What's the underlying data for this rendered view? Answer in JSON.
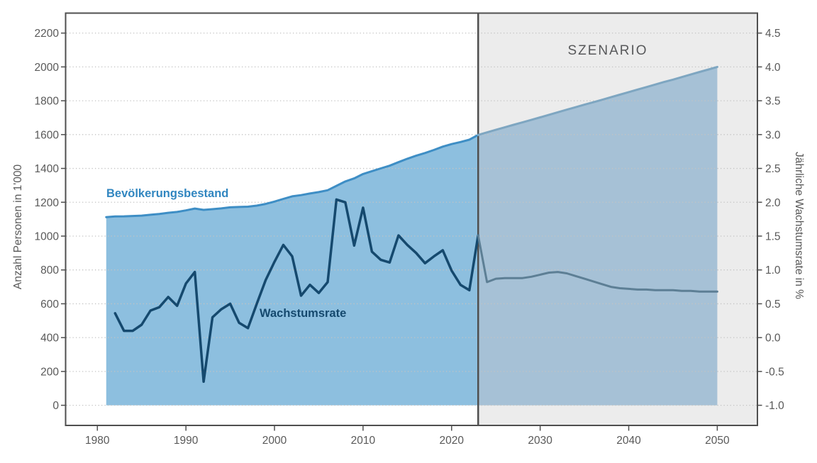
{
  "chart_data": {
    "type": "area",
    "title": "",
    "scenario_label": "SZENARIO",
    "scenario_start_year": 2023,
    "grid": "dotted-horizontal",
    "legend_position": "inline-labels",
    "x_axis": {
      "ticks": [
        1980,
        1990,
        2000,
        2010,
        2020,
        2030,
        2040,
        2050
      ]
    },
    "left_axis": {
      "label": "Anzahl Personen in 1'000",
      "range": [
        0,
        2200
      ],
      "ticks": [
        2200,
        2000,
        1800,
        1600,
        1400,
        1200,
        1000,
        800,
        600,
        400,
        200,
        0
      ]
    },
    "right_axis": {
      "label": "Jährliche Wachstumsrate in %",
      "range": [
        -1.0,
        4.5
      ],
      "ticks": [
        "4.5",
        "4.0",
        "3.5",
        "3.0",
        "2.5",
        "2.0",
        "1.5",
        "1.0",
        "0.5",
        "0.0",
        "-0.5",
        "-1.0"
      ]
    },
    "series": [
      {
        "name": "Bevölkerungsbestand",
        "type": "area",
        "axis": "left",
        "color": "#3e8ec5",
        "fill": "#8dbfdf",
        "scenario_color": "#7ea6c1",
        "scenario_fill": "#a6c1d6",
        "start_year": 1981,
        "values": [
          1112,
          1116,
          1117,
          1119,
          1121,
          1126,
          1131,
          1138,
          1143,
          1152,
          1163,
          1155,
          1159,
          1164,
          1170,
          1172,
          1174,
          1180,
          1190,
          1204,
          1220,
          1235,
          1242,
          1252,
          1260,
          1271,
          1297,
          1323,
          1341,
          1367,
          1384,
          1400,
          1416,
          1437,
          1457,
          1475,
          1491,
          1509,
          1529,
          1544,
          1556,
          1570,
          1598,
          1613,
          1628,
          1643,
          1658,
          1672,
          1687,
          1702,
          1717,
          1732,
          1747,
          1762,
          1777,
          1791,
          1806,
          1821,
          1836,
          1851,
          1866,
          1881,
          1896,
          1911,
          1925,
          1940,
          1955,
          1970,
          1985,
          2000
        ]
      },
      {
        "name": "Wachstumsrate",
        "type": "line",
        "axis": "right",
        "color": "#15496e",
        "scenario_color": "#5d7f95",
        "start_year": 1982,
        "values": [
          0.36,
          0.1,
          0.1,
          0.19,
          0.4,
          0.45,
          0.6,
          0.47,
          0.8,
          0.97,
          -0.65,
          0.3,
          0.42,
          0.5,
          0.22,
          0.14,
          0.5,
          0.85,
          1.12,
          1.37,
          1.2,
          0.62,
          0.78,
          0.66,
          0.82,
          2.04,
          2.0,
          1.36,
          1.92,
          1.27,
          1.15,
          1.11,
          1.51,
          1.37,
          1.25,
          1.1,
          1.2,
          1.29,
          0.99,
          0.78,
          0.7,
          1.51,
          0.82,
          0.87,
          0.88,
          0.88,
          0.88,
          0.9,
          0.93,
          0.96,
          0.97,
          0.95,
          0.91,
          0.87,
          0.83,
          0.79,
          0.75,
          0.73,
          0.72,
          0.71,
          0.71,
          0.7,
          0.7,
          0.7,
          0.69,
          0.69,
          0.68,
          0.68,
          0.68
        ]
      }
    ],
    "colors": {
      "scenario_background": "#ececec",
      "divider": "#4f4f4f",
      "border": "#4f4f4f",
      "gridline": "#c3c3c3",
      "text": "#595959"
    }
  }
}
